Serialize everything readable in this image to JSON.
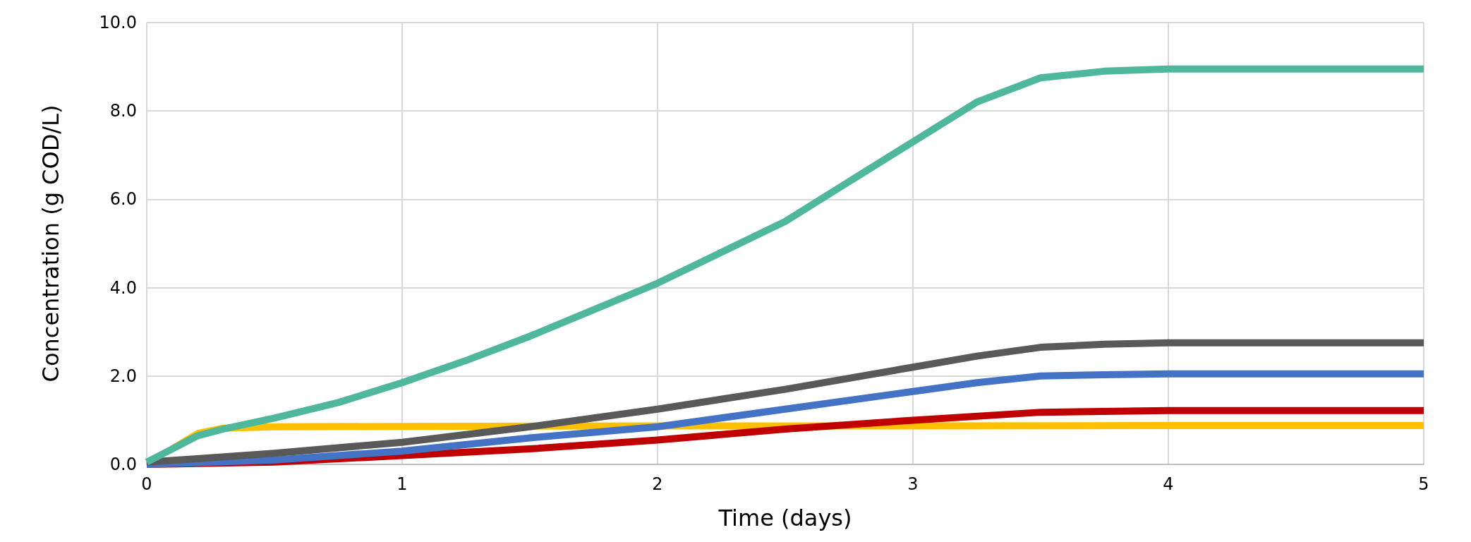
{
  "chart_data": {
    "type": "line",
    "xlabel": "Time (days)",
    "ylabel": "Concentration (g COD/L)",
    "xlim": [
      0,
      5
    ],
    "xticks": [
      0,
      1,
      2,
      3,
      4,
      5
    ],
    "ylim": [
      0,
      10
    ],
    "yticks": [
      {
        "value": 0,
        "label": "0.0"
      },
      {
        "value": 2,
        "label": "2.0"
      },
      {
        "value": 4,
        "label": "4.0"
      },
      {
        "value": 6,
        "label": "6.0"
      },
      {
        "value": 8,
        "label": "8.0"
      },
      {
        "value": 10,
        "label": "10.0"
      }
    ],
    "grid": true,
    "marker": "none",
    "line_style": "solid",
    "series": [
      {
        "color": "#ffc000",
        "x": [
          0.1,
          0.2,
          0.3,
          0.5,
          1,
          2,
          3,
          4,
          5
        ],
        "values": [
          0.35,
          0.7,
          0.82,
          0.85,
          0.86,
          0.87,
          0.87,
          0.88,
          0.88
        ]
      },
      {
        "color": "#c00000",
        "x": [
          0,
          0.5,
          1,
          1.5,
          2,
          2.5,
          3,
          3.5,
          4,
          5
        ],
        "values": [
          0,
          0.05,
          0.2,
          0.35,
          0.55,
          0.8,
          1.0,
          1.18,
          1.22,
          1.22
        ]
      },
      {
        "color": "#4472c4",
        "x": [
          0,
          0.5,
          1,
          1.5,
          2,
          2.5,
          3,
          3.25,
          3.5,
          3.75,
          4,
          5
        ],
        "values": [
          0,
          0.1,
          0.3,
          0.6,
          0.85,
          1.25,
          1.65,
          1.85,
          2.0,
          2.03,
          2.05,
          2.05
        ]
      },
      {
        "color": "#595959",
        "x": [
          0,
          0.5,
          1,
          1.5,
          2,
          2.5,
          3,
          3.25,
          3.5,
          3.75,
          4,
          5
        ],
        "values": [
          0.05,
          0.25,
          0.5,
          0.85,
          1.25,
          1.7,
          2.2,
          2.45,
          2.65,
          2.72,
          2.75,
          2.75
        ]
      },
      {
        "color": "#4fb89c",
        "x": [
          0,
          0.1,
          0.2,
          0.3,
          0.5,
          0.75,
          1,
          1.25,
          1.5,
          1.75,
          2,
          2.25,
          2.5,
          2.75,
          3,
          3.25,
          3.5,
          3.75,
          4,
          5
        ],
        "values": [
          0.05,
          0.35,
          0.65,
          0.8,
          1.05,
          1.4,
          1.85,
          2.35,
          2.9,
          3.5,
          4.1,
          4.8,
          5.5,
          6.4,
          7.3,
          8.2,
          8.75,
          8.9,
          8.95,
          8.95
        ]
      }
    ]
  }
}
